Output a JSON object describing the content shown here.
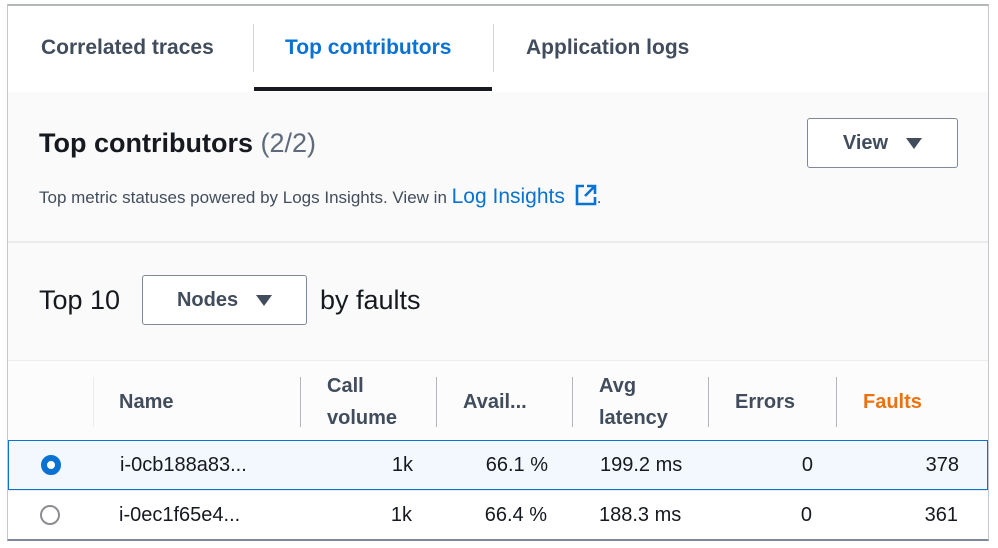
{
  "tabs": [
    {
      "label": "Correlated traces"
    },
    {
      "label": "Top contributors",
      "active": true
    },
    {
      "label": "Application logs"
    }
  ],
  "header": {
    "title": "Top contributors",
    "count": "(2/2)",
    "view_button": "View",
    "description": "Top metric statuses powered by Logs Insights. View in ",
    "link": "Log Insights",
    "period": "."
  },
  "selector": {
    "prefix": "Top 10",
    "value": "Nodes",
    "suffix": "by faults"
  },
  "table": {
    "columns": [
      "Name",
      "Call volume",
      "Avail...",
      "Avg latency",
      "Errors",
      "Faults"
    ],
    "rows": [
      {
        "selected": true,
        "name": "i-0cb188a83...",
        "call_volume": "1k",
        "availability": "66.1 %",
        "latency": "199.2 ms",
        "errors": "0",
        "faults": "378"
      },
      {
        "selected": false,
        "name": "i-0ec1f65e4...",
        "call_volume": "1k",
        "availability": "66.4 %",
        "latency": "188.3 ms",
        "errors": "0",
        "faults": "361"
      }
    ]
  },
  "colors": {
    "accent": "#0972d3",
    "faults_header": "#ec7211",
    "selected_row_bg": "#f2f8fd"
  }
}
